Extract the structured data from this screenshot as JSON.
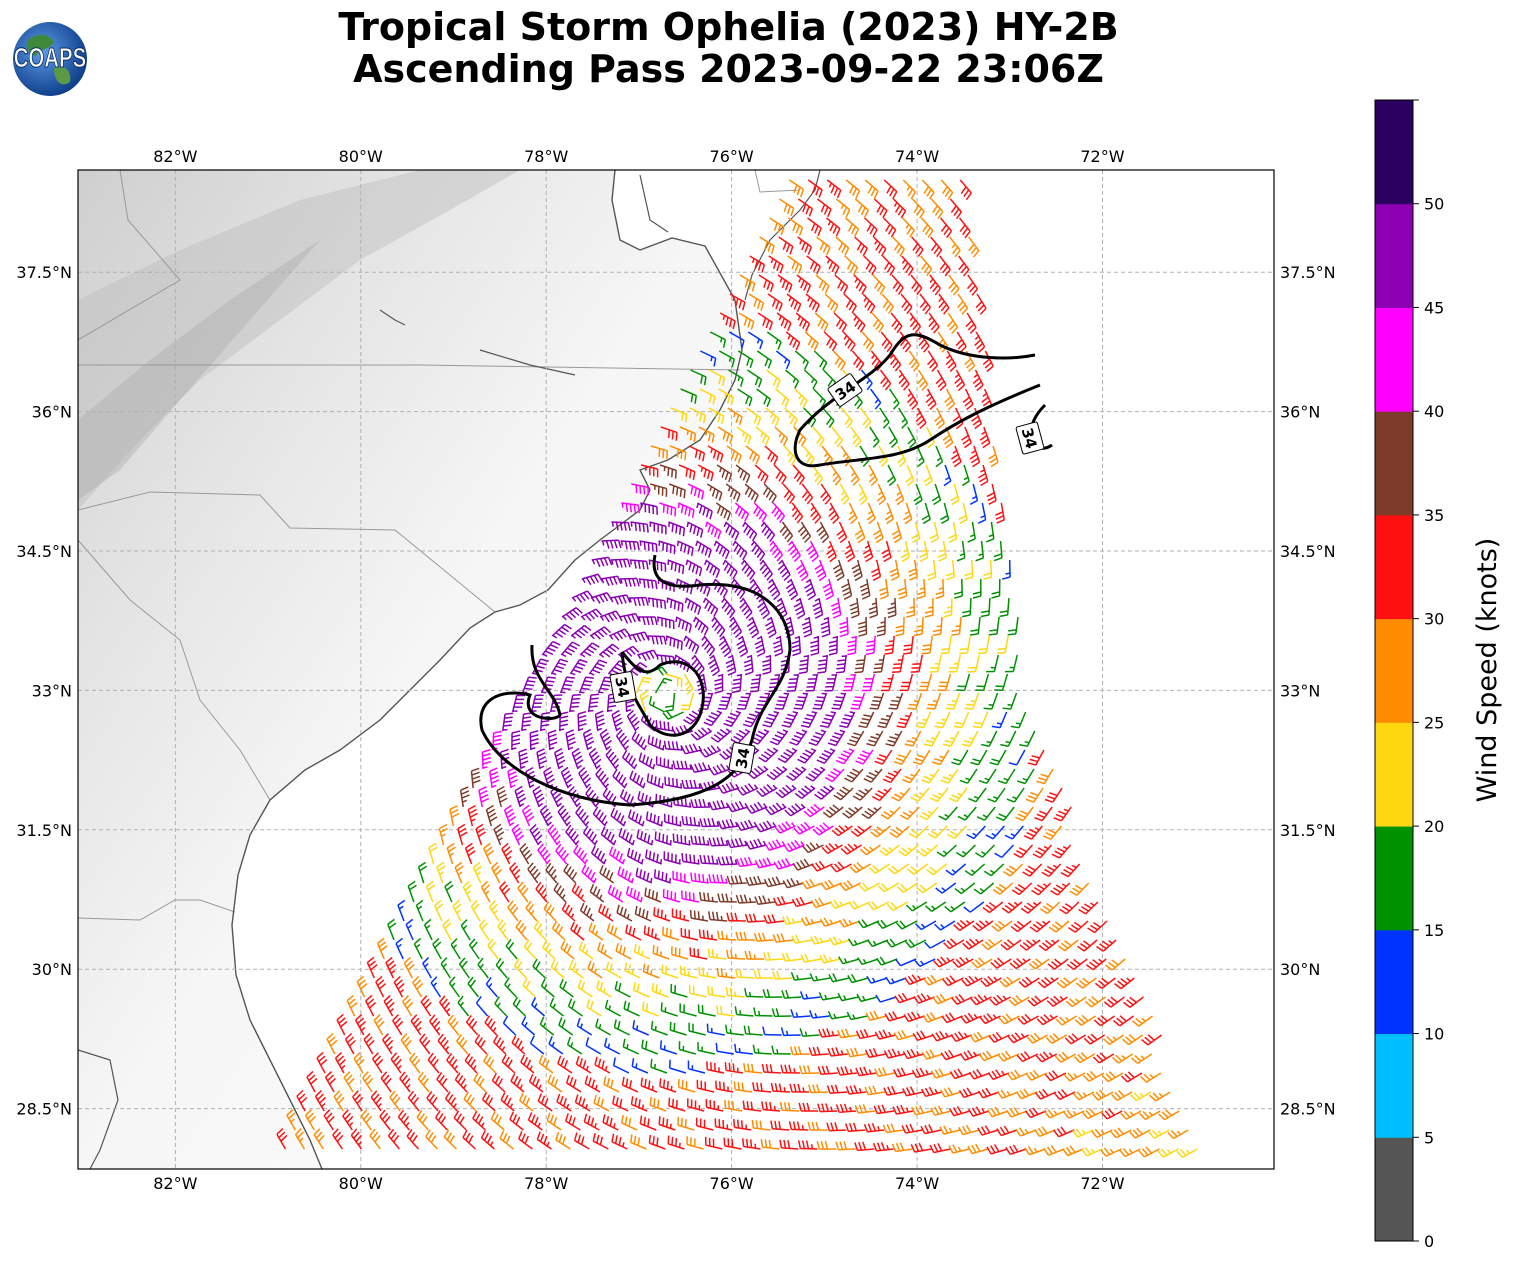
{
  "title": {
    "line1": "Tropical Storm Ophelia (2023) HY-2B",
    "line2": "Ascending Pass 2023-09-22 23:06Z"
  },
  "logo": {
    "text": "COAPS",
    "icon": "globe-logo-icon"
  },
  "map": {
    "lon_range": [
      -83.05,
      -70.15
    ],
    "lat_range": [
      27.85,
      38.6
    ],
    "lon_ticks": [
      "82°W",
      "80°W",
      "78°W",
      "76°W",
      "74°W",
      "72°W"
    ],
    "lon_tick_values": [
      -82,
      -80,
      -78,
      -76,
      -74,
      -72
    ],
    "lat_ticks": [
      "37.5°N",
      "36°N",
      "34.5°N",
      "33°N",
      "31.5°N",
      "30°N",
      "28.5°N"
    ],
    "lat_tick_values": [
      37.5,
      36,
      34.5,
      33,
      31.5,
      30,
      28.5
    ],
    "gridlines": true,
    "storm_center": {
      "lon": -76.7,
      "lat": 32.95
    },
    "contour_level_label": "34",
    "contour_level": 34
  },
  "colorbar": {
    "label": "Wind Speed (knots)",
    "ticks": [
      "0",
      "5",
      "10",
      "15",
      "20",
      "25",
      "30",
      "35",
      "40",
      "45",
      "50"
    ],
    "bins": [
      {
        "min": 0,
        "max": 5,
        "color": "#555555"
      },
      {
        "min": 5,
        "max": 10,
        "color": "#00bfff"
      },
      {
        "min": 10,
        "max": 15,
        "color": "#0033ff"
      },
      {
        "min": 15,
        "max": 20,
        "color": "#009100"
      },
      {
        "min": 20,
        "max": 25,
        "color": "#ffd710"
      },
      {
        "min": 25,
        "max": 30,
        "color": "#ff8c00"
      },
      {
        "min": 30,
        "max": 35,
        "color": "#ff1010"
      },
      {
        "min": 35,
        "max": 40,
        "color": "#7f3b2a"
      },
      {
        "min": 40,
        "max": 45,
        "color": "#ff00ff"
      },
      {
        "min": 45,
        "max": 50,
        "color": "#8c00b4"
      },
      {
        "min": 50,
        "max": 55,
        "color": "#2a0060"
      }
    ]
  }
}
